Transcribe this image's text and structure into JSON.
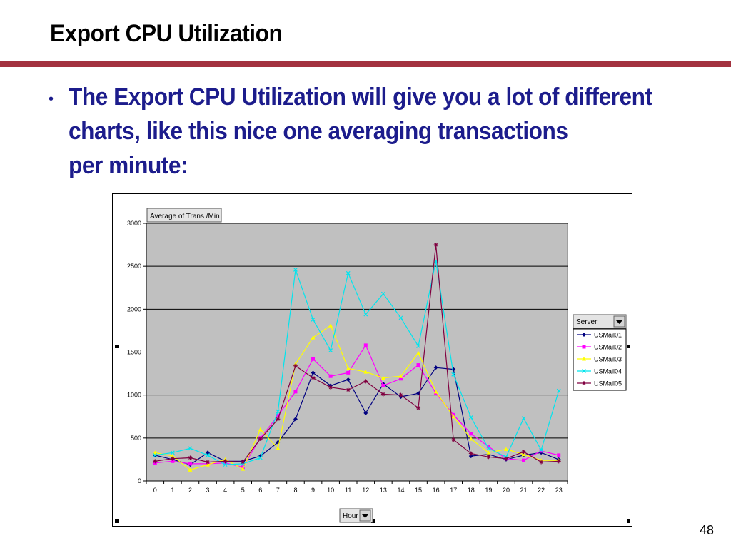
{
  "slide": {
    "title": "Export CPU Utilization",
    "bullet_lines": [
      "The Export CPU Utilization will give you a lot of different",
      "charts, like this nice one averaging transactions",
      "per minute:"
    ],
    "page_number": "48"
  },
  "colors": {
    "accent_rule": "#a3323f",
    "bullet_text": "#1c1c8c",
    "plot_bg": "#c0c0c0"
  },
  "chart_data": {
    "type": "line",
    "title": "",
    "data_field_label": "Average of Trans /Min",
    "xlabel": "Hour",
    "legend_title": "Server",
    "legend_position": "right",
    "grid": true,
    "ylim": [
      0,
      3000
    ],
    "yticks": [
      0,
      500,
      1000,
      1500,
      2000,
      2500,
      3000
    ],
    "categories": [
      "0",
      "1",
      "2",
      "3",
      "4",
      "5",
      "6",
      "7",
      "8",
      "9",
      "10",
      "11",
      "12",
      "13",
      "14",
      "15",
      "16",
      "17",
      "18",
      "19",
      "20",
      "21",
      "22",
      "23"
    ],
    "series": [
      {
        "name": "USMail01",
        "color": "#000080",
        "marker": "diamond",
        "values": [
          300,
          250,
          190,
          330,
          230,
          230,
          290,
          450,
          720,
          1260,
          1110,
          1180,
          790,
          1130,
          980,
          1020,
          1320,
          1300,
          290,
          310,
          250,
          300,
          330,
          250
        ]
      },
      {
        "name": "USMail02",
        "color": "#ff00ff",
        "marker": "square",
        "values": [
          210,
          230,
          200,
          200,
          210,
          160,
          500,
          760,
          1040,
          1420,
          1220,
          1260,
          1580,
          1110,
          1190,
          1350,
          1020,
          770,
          550,
          400,
          260,
          240,
          350,
          300
        ]
      },
      {
        "name": "USMail03",
        "color": "#ffff00",
        "marker": "triangle",
        "values": [
          330,
          290,
          130,
          190,
          250,
          140,
          600,
          380,
          1360,
          1670,
          1810,
          1310,
          1270,
          1200,
          1220,
          1490,
          1040,
          750,
          490,
          330,
          370,
          310,
          240,
          240
        ]
      },
      {
        "name": "USMail04",
        "color": "#00e5ee",
        "marker": "x",
        "values": [
          300,
          330,
          380,
          300,
          190,
          200,
          270,
          810,
          2460,
          1880,
          1520,
          2420,
          1940,
          2180,
          1900,
          1570,
          2560,
          1240,
          740,
          380,
          280,
          730,
          360,
          1050
        ]
      },
      {
        "name": "USMail05",
        "color": "#800040",
        "marker": "star",
        "values": [
          230,
          260,
          270,
          220,
          230,
          220,
          490,
          720,
          1340,
          1200,
          1090,
          1060,
          1160,
          1010,
          1000,
          850,
          2750,
          480,
          320,
          280,
          260,
          340,
          220,
          230
        ]
      }
    ]
  }
}
